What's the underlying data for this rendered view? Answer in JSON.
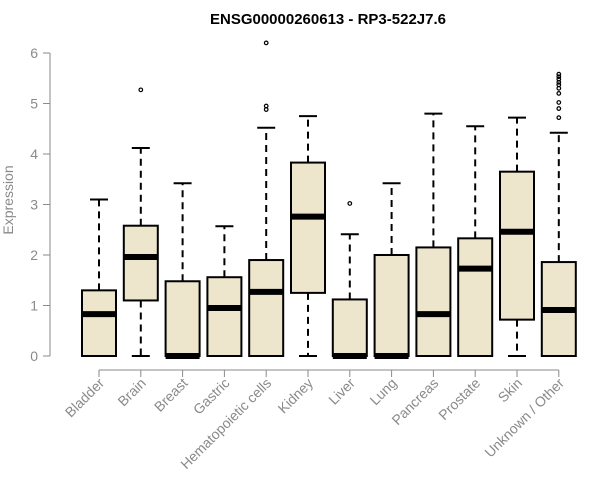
{
  "chart_data": {
    "type": "box",
    "title": "ENSG00000260613 - RP3-522J7.6",
    "xlabel": "",
    "ylabel": "Expression",
    "ylim": [
      0,
      6
    ],
    "yticks": [
      0,
      1,
      2,
      3,
      4,
      5,
      6
    ],
    "grid": false,
    "box_fill": "#ede6cc",
    "box_stroke": "#000000",
    "axis_color": "#8a8a8a",
    "categories": [
      "Bladder",
      "Brain",
      "Breast",
      "Gastric",
      "Hematopoietic cells",
      "Kidney",
      "Liver",
      "Lung",
      "Pancreas",
      "Prostate",
      "Skin",
      "Unknown / Other"
    ],
    "boxes": [
      {
        "q1": 0.0,
        "median": 0.83,
        "q3": 1.3,
        "whisker_low": 0.0,
        "whisker_high": 3.1,
        "outliers": []
      },
      {
        "q1": 1.1,
        "median": 1.96,
        "q3": 2.58,
        "whisker_low": 0.0,
        "whisker_high": 4.12,
        "outliers": [
          5.27
        ]
      },
      {
        "q1": 0.0,
        "median": 0.0,
        "q3": 1.48,
        "whisker_low": 0.0,
        "whisker_high": 3.42,
        "outliers": []
      },
      {
        "q1": 0.0,
        "median": 0.95,
        "q3": 1.56,
        "whisker_low": 0.0,
        "whisker_high": 2.57,
        "outliers": []
      },
      {
        "q1": 0.0,
        "median": 1.27,
        "q3": 1.9,
        "whisker_low": 0.0,
        "whisker_high": 4.52,
        "outliers": [
          4.88,
          4.95,
          6.2
        ]
      },
      {
        "q1": 1.25,
        "median": 2.76,
        "q3": 3.83,
        "whisker_low": 0.0,
        "whisker_high": 4.75,
        "outliers": []
      },
      {
        "q1": 0.0,
        "median": 0.0,
        "q3": 1.12,
        "whisker_low": 0.0,
        "whisker_high": 2.41,
        "outliers": [
          3.02
        ]
      },
      {
        "q1": 0.0,
        "median": 0.0,
        "q3": 2.0,
        "whisker_low": 0.0,
        "whisker_high": 3.42,
        "outliers": []
      },
      {
        "q1": 0.0,
        "median": 0.83,
        "q3": 2.15,
        "whisker_low": 0.0,
        "whisker_high": 4.8,
        "outliers": []
      },
      {
        "q1": 0.0,
        "median": 1.73,
        "q3": 2.33,
        "whisker_low": 0.0,
        "whisker_high": 4.55,
        "outliers": []
      },
      {
        "q1": 0.72,
        "median": 2.46,
        "q3": 3.65,
        "whisker_low": 0.0,
        "whisker_high": 4.72,
        "outliers": []
      },
      {
        "q1": 0.0,
        "median": 0.91,
        "q3": 1.86,
        "whisker_low": 0.0,
        "whisker_high": 4.42,
        "outliers": [
          4.72,
          4.9,
          5.02,
          5.2,
          5.3,
          5.37,
          5.42,
          5.48,
          5.53,
          5.58
        ]
      }
    ]
  }
}
